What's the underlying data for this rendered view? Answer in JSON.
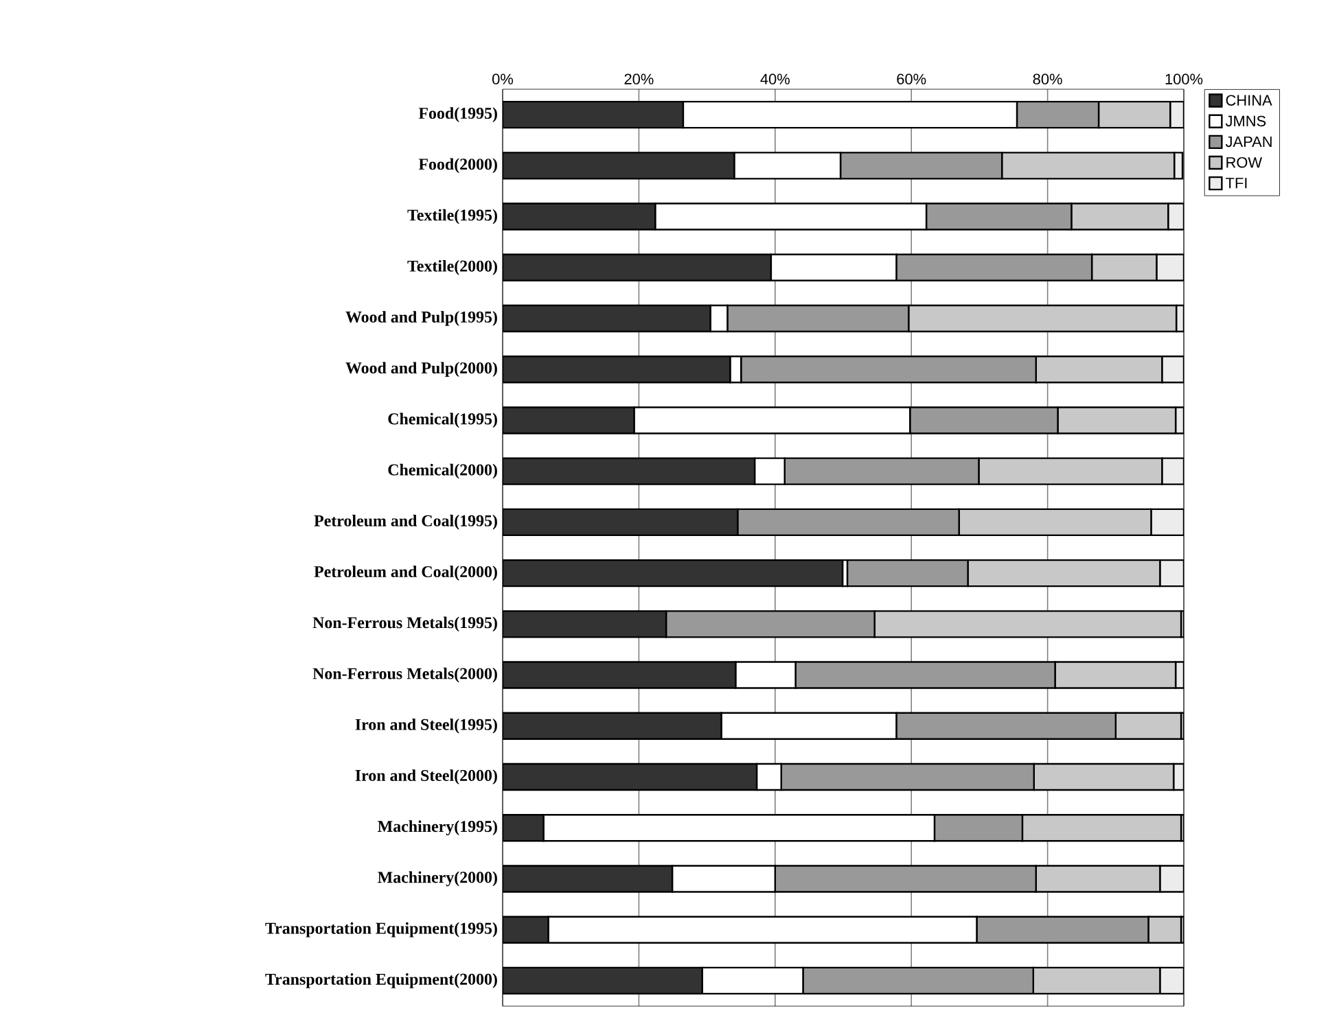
{
  "chart_data": {
    "type": "bar",
    "orientation": "horizontal",
    "stacked": true,
    "categories": [
      "Food(1995)",
      "Food(2000)",
      "Textile(1995)",
      "Textile(2000)",
      "Wood and Pulp(1995)",
      "Wood and Pulp(2000)",
      "Chemical(1995)",
      "Chemical(2000)",
      "Petroleum and Coal(1995)",
      "Petroleum and Coal(2000)",
      "Non-Ferrous Metals(1995)",
      "Non-Ferrous Metals(2000)",
      "Iron and Steel(1995)",
      "Iron and Steel(2000)",
      "Machinery(1995)",
      "Machinery(2000)",
      "Transportation Equipment(1995)",
      "Transportation Equipment(2000)"
    ],
    "series": [
      {
        "name": "CHINA",
        "color": "#333333",
        "values": [
          26.5,
          34.0,
          22.4,
          39.4,
          30.5,
          33.4,
          19.3,
          37.0,
          34.5,
          49.9,
          24.0,
          34.2,
          32.1,
          37.3,
          6.0,
          24.9,
          6.7,
          29.3
        ]
      },
      {
        "name": "JMNS",
        "color": "#ffffff",
        "values": [
          49.0,
          15.6,
          39.8,
          18.4,
          2.5,
          1.6,
          40.5,
          4.4,
          0,
          0.7,
          0,
          8.8,
          25.7,
          3.6,
          57.4,
          15.1,
          62.9,
          14.8
        ]
      },
      {
        "name": "JAPAN",
        "color": "#999999",
        "values": [
          12.0,
          23.7,
          21.3,
          28.7,
          26.6,
          43.3,
          21.7,
          28.5,
          32.5,
          17.7,
          30.6,
          38.1,
          32.2,
          37.1,
          12.9,
          38.3,
          25.2,
          33.8
        ]
      },
      {
        "name": "ROW",
        "color": "#c8c8c8",
        "values": [
          10.5,
          25.3,
          14.2,
          9.5,
          39.3,
          18.5,
          17.3,
          26.9,
          28.2,
          28.2,
          45.0,
          17.7,
          9.6,
          20.5,
          23.3,
          18.2,
          4.8,
          18.6
        ]
      },
      {
        "name": "TFI",
        "color": "#ececec",
        "values": [
          2.0,
          1.2,
          2.3,
          4.0,
          1.1,
          3.2,
          1.2,
          3.2,
          4.8,
          3.5,
          0.4,
          1.2,
          0.4,
          1.5,
          0.4,
          3.5,
          0.4,
          3.5
        ]
      }
    ],
    "xlim": [
      0,
      100
    ],
    "xticks": [
      {
        "value": 0,
        "label": "0%"
      },
      {
        "value": 20,
        "label": "20%"
      },
      {
        "value": 40,
        "label": "40%"
      },
      {
        "value": 60,
        "label": "60%"
      },
      {
        "value": 80,
        "label": "80%"
      },
      {
        "value": 100,
        "label": "100%"
      }
    ],
    "grid": "x",
    "legend": "top right"
  }
}
